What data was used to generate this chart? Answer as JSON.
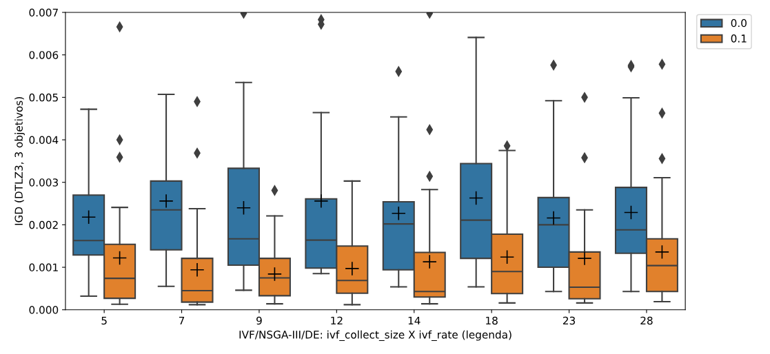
{
  "chart_data": {
    "type": "box",
    "xlabel": "IVF/NSGA-III/DE: ivf_collect_size X ivf_rate (legenda)",
    "ylabel": "IGD (DTLZ3, 3 objetivos)",
    "categories": [
      "5",
      "7",
      "9",
      "12",
      "14",
      "18",
      "23",
      "28"
    ],
    "ylim": [
      0,
      0.007
    ],
    "yticks": [
      {
        "value": 0,
        "label": "0.000"
      },
      {
        "value": 0.001,
        "label": "0.001"
      },
      {
        "value": 0.002,
        "label": "0.002"
      },
      {
        "value": 0.003,
        "label": "0.003"
      },
      {
        "value": 0.004,
        "label": "0.004"
      },
      {
        "value": 0.005,
        "label": "0.005"
      },
      {
        "value": 0.006,
        "label": "0.006"
      },
      {
        "value": 0.007,
        "label": "0.007"
      }
    ],
    "legend": "top right outside",
    "grid": false,
    "series": [
      {
        "name": "0.0",
        "color": "#3274a1",
        "boxes": [
          {
            "low": 0.00032,
            "q1": 0.00129,
            "median": 0.00163,
            "q3": 0.0027,
            "high": 0.00472,
            "mean": 0.00218
          },
          {
            "low": 0.00055,
            "q1": 0.00141,
            "median": 0.00235,
            "q3": 0.00303,
            "high": 0.00507,
            "mean": 0.00256
          },
          {
            "low": 0.00046,
            "q1": 0.00105,
            "median": 0.00167,
            "q3": 0.00333,
            "high": 0.00535,
            "mean": 0.0024,
            "outliers": [
              0.00698
            ]
          },
          {
            "low": 0.00085,
            "q1": 0.00098,
            "median": 0.00164,
            "q3": 0.00261,
            "high": 0.00464,
            "mean": 0.00256,
            "outliers": [
              0.00683,
              0.00672
            ]
          },
          {
            "low": 0.00054,
            "q1": 0.00094,
            "median": 0.00202,
            "q3": 0.00254,
            "high": 0.00454,
            "mean": 0.00227,
            "outliers": [
              0.00561
            ]
          },
          {
            "low": 0.00054,
            "q1": 0.00121,
            "median": 0.00211,
            "q3": 0.00344,
            "high": 0.00641,
            "mean": 0.00263
          },
          {
            "low": 0.00043,
            "q1": 0.001,
            "median": 0.002,
            "q3": 0.00264,
            "high": 0.00492,
            "mean": 0.00216,
            "outliers": [
              0.00576
            ]
          },
          {
            "low": 0.00043,
            "q1": 0.00133,
            "median": 0.00188,
            "q3": 0.00288,
            "high": 0.00499,
            "mean": 0.00229,
            "outliers": [
              0.00575,
              0.00572
            ]
          }
        ]
      },
      {
        "name": "0.1",
        "color": "#e1812c",
        "boxes": [
          {
            "low": 0.00013,
            "q1": 0.00027,
            "median": 0.00074,
            "q3": 0.00154,
            "high": 0.00241,
            "mean": 0.00122,
            "outliers": [
              0.00666,
              0.004,
              0.00359
            ]
          },
          {
            "low": 0.00012,
            "q1": 0.00018,
            "median": 0.00045,
            "q3": 0.00121,
            "high": 0.00238,
            "mean": 0.00094,
            "outliers": [
              0.0049,
              0.00369
            ]
          },
          {
            "low": 0.00014,
            "q1": 0.00033,
            "median": 0.00075,
            "q3": 0.00121,
            "high": 0.00221,
            "mean": 0.00084,
            "outliers": [
              0.00281
            ]
          },
          {
            "low": 0.00012,
            "q1": 0.00039,
            "median": 0.00069,
            "q3": 0.0015,
            "high": 0.00303,
            "mean": 0.00097
          },
          {
            "low": 0.00014,
            "q1": 0.0003,
            "median": 0.00043,
            "q3": 0.00135,
            "high": 0.00283,
            "mean": 0.00113,
            "outliers": [
              0.00698,
              0.00424,
              0.00314
            ]
          },
          {
            "low": 0.00016,
            "q1": 0.00038,
            "median": 0.0009,
            "q3": 0.00178,
            "high": 0.00375,
            "mean": 0.00124,
            "outliers": [
              0.00386
            ]
          },
          {
            "low": 0.00016,
            "q1": 0.00026,
            "median": 0.00053,
            "q3": 0.00136,
            "high": 0.00235,
            "mean": 0.00121,
            "outliers": [
              0.005,
              0.00358
            ]
          },
          {
            "low": 0.00019,
            "q1": 0.00043,
            "median": 0.00104,
            "q3": 0.00167,
            "high": 0.00311,
            "mean": 0.00136,
            "outliers": [
              0.00578,
              0.00463,
              0.00356
            ]
          }
        ]
      }
    ]
  }
}
